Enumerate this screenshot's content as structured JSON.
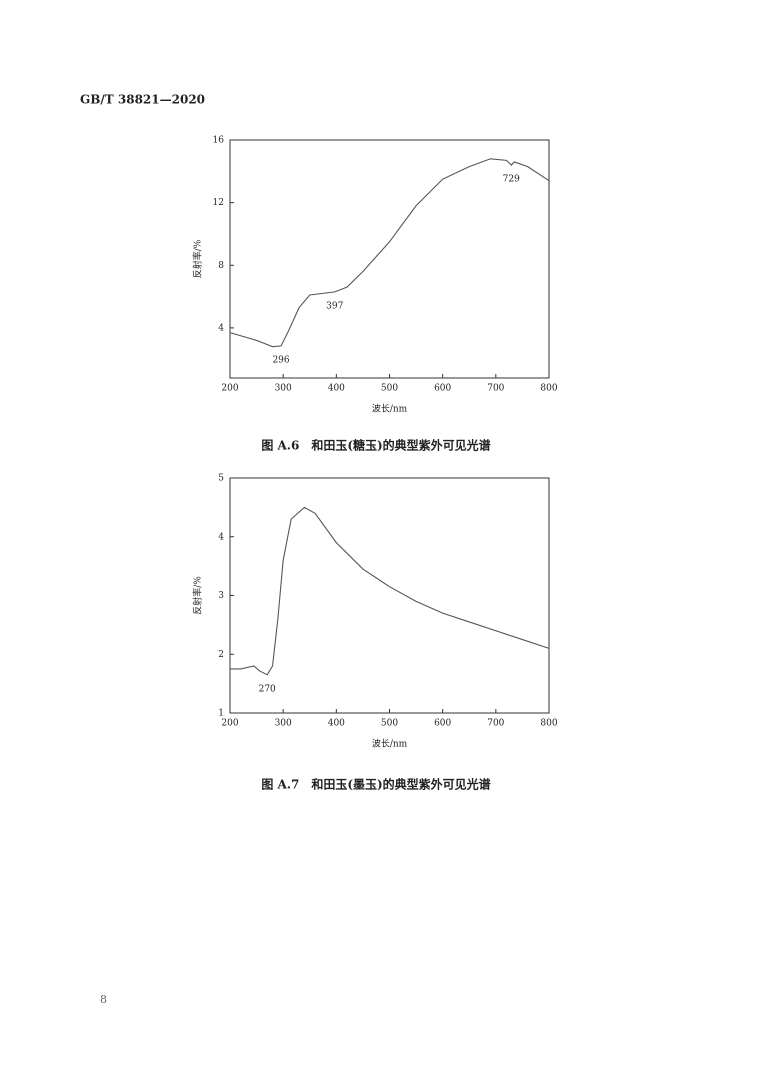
{
  "header": "GB/T 38821—2020",
  "page_number": "8",
  "chart_data": [
    {
      "type": "line",
      "caption": "图 A.6　和田玉(糖玉)的典型紫外可见光谱",
      "xlabel": "波长/nm",
      "ylabel": "反射率/%",
      "xlim": [
        200,
        800
      ],
      "xticks": [
        200,
        300,
        400,
        500,
        600,
        700,
        800
      ],
      "ylim": [
        0.8,
        16
      ],
      "yticks": [
        4,
        8,
        12,
        16
      ],
      "color": "#555555",
      "x": [
        200,
        250,
        280,
        296,
        310,
        330,
        350,
        397,
        420,
        450,
        500,
        550,
        600,
        650,
        690,
        720,
        729,
        735,
        760,
        800
      ],
      "values": [
        3.7,
        3.2,
        2.8,
        2.85,
        3.8,
        5.3,
        6.1,
        6.3,
        6.6,
        7.6,
        9.5,
        11.8,
        13.5,
        14.3,
        14.8,
        14.7,
        14.4,
        14.6,
        14.3,
        13.4
      ],
      "annotations": [
        296,
        397,
        729
      ]
    },
    {
      "type": "line",
      "caption": "图 A.7　和田玉(墨玉)的典型紫外可见光谱",
      "xlabel": "波长/nm",
      "ylabel": "反射率/%",
      "xlim": [
        200,
        800
      ],
      "xticks": [
        200,
        300,
        400,
        500,
        600,
        700,
        800
      ],
      "ylim": [
        1,
        5
      ],
      "yticks": [
        1,
        2,
        3,
        4,
        5
      ],
      "color": "#555555",
      "x": [
        200,
        220,
        245,
        255,
        270,
        280,
        290,
        300,
        315,
        340,
        360,
        400,
        450,
        500,
        550,
        600,
        650,
        700,
        750,
        800
      ],
      "values": [
        1.75,
        1.75,
        1.8,
        1.72,
        1.65,
        1.8,
        2.6,
        3.6,
        4.3,
        4.5,
        4.4,
        3.9,
        3.45,
        3.15,
        2.9,
        2.7,
        2.55,
        2.4,
        2.25,
        2.1
      ],
      "annotations": [
        270
      ]
    }
  ]
}
